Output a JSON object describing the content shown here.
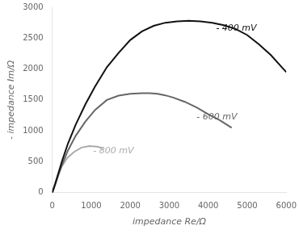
{
  "chart_data": {
    "type": "line",
    "xlabel": "impedance Re/Ω",
    "ylabel": "- impedance Im/Ω",
    "xlim": [
      0,
      6000
    ],
    "ylim": [
      0,
      3000
    ],
    "xticks": [
      0,
      1000,
      2000,
      3000,
      4000,
      5000,
      6000
    ],
    "yticks": [
      0,
      500,
      1000,
      1500,
      2000,
      2500,
      3000
    ],
    "grid": false,
    "series": [
      {
        "color": "#111111",
        "x": [
          0,
          30,
          80,
          150,
          250,
          400,
          600,
          850,
          1100,
          1400,
          1700,
          2000,
          2300,
          2600,
          2900,
          3200,
          3500,
          3800,
          4100,
          4400,
          4700,
          5000,
          5300,
          5600,
          5900,
          6000
        ],
        "values": [
          0,
          55,
          150,
          300,
          510,
          790,
          1100,
          1430,
          1720,
          2030,
          2260,
          2470,
          2610,
          2700,
          2750,
          2770,
          2780,
          2770,
          2750,
          2710,
          2650,
          2550,
          2400,
          2230,
          2020,
          1950
        ]
      },
      {
        "color": "#666666",
        "x": [
          0,
          30,
          80,
          150,
          250,
          400,
          600,
          850,
          1100,
          1400,
          1700,
          2000,
          2300,
          2500,
          2700,
          2900,
          3100,
          3400,
          3700,
          4000,
          4300,
          4600
        ],
        "values": [
          0,
          50,
          140,
          270,
          450,
          680,
          920,
          1150,
          1340,
          1500,
          1570,
          1600,
          1610,
          1610,
          1600,
          1575,
          1540,
          1470,
          1380,
          1270,
          1170,
          1050
        ]
      },
      {
        "color": "#aaaaaa",
        "x": [
          0,
          20,
          60,
          130,
          230,
          380,
          560,
          750,
          950,
          1150,
          1300
        ],
        "values": [
          0,
          45,
          130,
          260,
          410,
          560,
          660,
          730,
          755,
          745,
          720
        ]
      }
    ],
    "annotations": [
      {
        "text": "- 400 mV",
        "x": 4200,
        "y": 2620,
        "color": "#111111"
      },
      {
        "text": "- 600 mV",
        "x": 3700,
        "y": 1190,
        "color": "#666666"
      },
      {
        "text": "- 800 mV",
        "x": 1050,
        "y": 640,
        "color": "#aaaaaa"
      }
    ]
  }
}
